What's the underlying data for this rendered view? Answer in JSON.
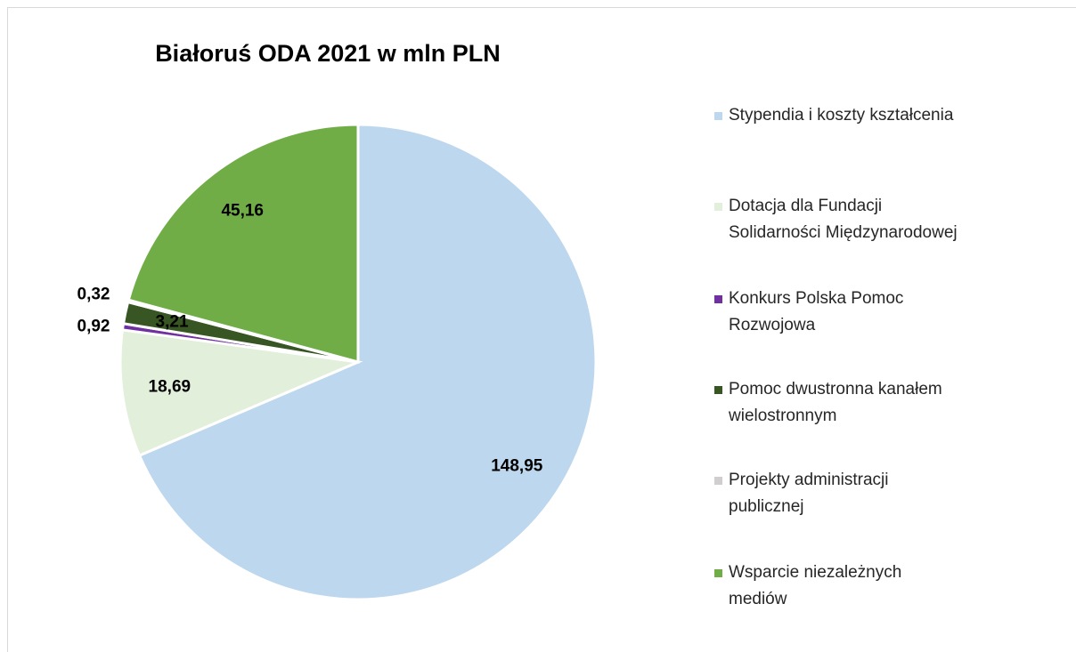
{
  "chart_data": {
    "type": "pie",
    "title": "Białoruś ODA 2021 w mln PLN",
    "categories": [
      "Stypendia i koszty kształcenia",
      "Dotacja dla Fundacji Solidarności Międzynarodowej",
      "Konkurs Polska Pomoc Rozwojowa",
      "Pomoc dwustronna kanałem wielostronnym",
      "Projekty administracji publicznej",
      "Wsparcie niezależnych mediów"
    ],
    "values": [
      148.95,
      18.69,
      0.92,
      3.21,
      0.32,
      45.16
    ],
    "value_labels": [
      "148,95",
      "18,69",
      "0,92",
      "3,21",
      "0,32",
      "45,16"
    ],
    "colors": [
      "#bdd7ee",
      "#e2efda",
      "#7030a0",
      "#375623",
      "#d0cece",
      "#70ad47"
    ],
    "legend": "right"
  }
}
